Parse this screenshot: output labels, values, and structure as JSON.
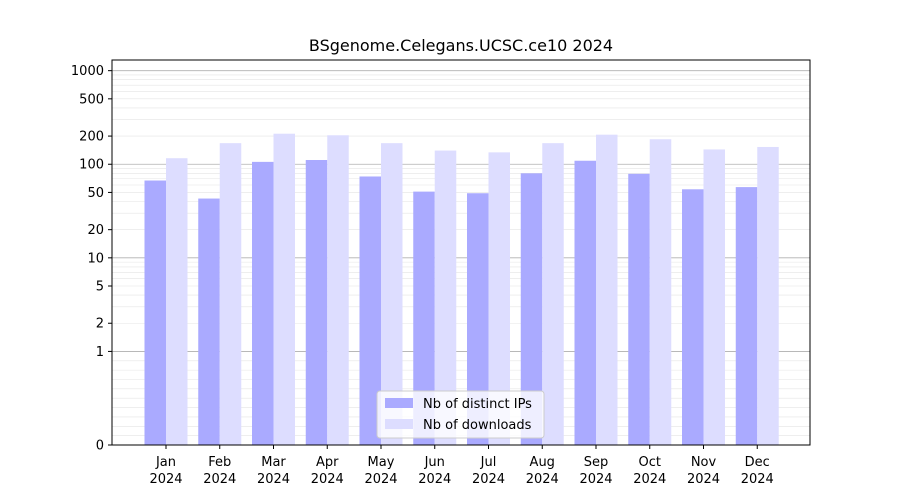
{
  "chart_data": {
    "type": "bar",
    "title": "BSgenome.Celegans.UCSC.ce10 2024",
    "xlabel": "",
    "ylabel": "",
    "yscale": "symlog",
    "ylim": [
      0,
      1300
    ],
    "yticks": [
      0,
      1,
      2,
      5,
      10,
      20,
      50,
      100,
      200,
      500,
      1000
    ],
    "ytick_labels": [
      "0",
      "1",
      "2",
      "5",
      "10",
      "20",
      "50",
      "100",
      "200",
      "500",
      "1000"
    ],
    "grid": true,
    "legend_position": "bottom-center",
    "categories": [
      {
        "month": "Jan",
        "year": "2024"
      },
      {
        "month": "Feb",
        "year": "2024"
      },
      {
        "month": "Mar",
        "year": "2024"
      },
      {
        "month": "Apr",
        "year": "2024"
      },
      {
        "month": "May",
        "year": "2024"
      },
      {
        "month": "Jun",
        "year": "2024"
      },
      {
        "month": "Jul",
        "year": "2024"
      },
      {
        "month": "Aug",
        "year": "2024"
      },
      {
        "month": "Sep",
        "year": "2024"
      },
      {
        "month": "Oct",
        "year": "2024"
      },
      {
        "month": "Nov",
        "year": "2024"
      },
      {
        "month": "Dec",
        "year": "2024"
      }
    ],
    "series": [
      {
        "name": "Nb of distinct IPs",
        "color": "#aaaaff",
        "values": [
          67,
          43,
          106,
          111,
          74,
          51,
          49,
          80,
          109,
          79,
          54,
          57
        ]
      },
      {
        "name": "Nb of downloads",
        "color": "#ddddff",
        "values": [
          116,
          168,
          212,
          204,
          168,
          140,
          134,
          168,
          207,
          185,
          144,
          153
        ]
      }
    ]
  }
}
